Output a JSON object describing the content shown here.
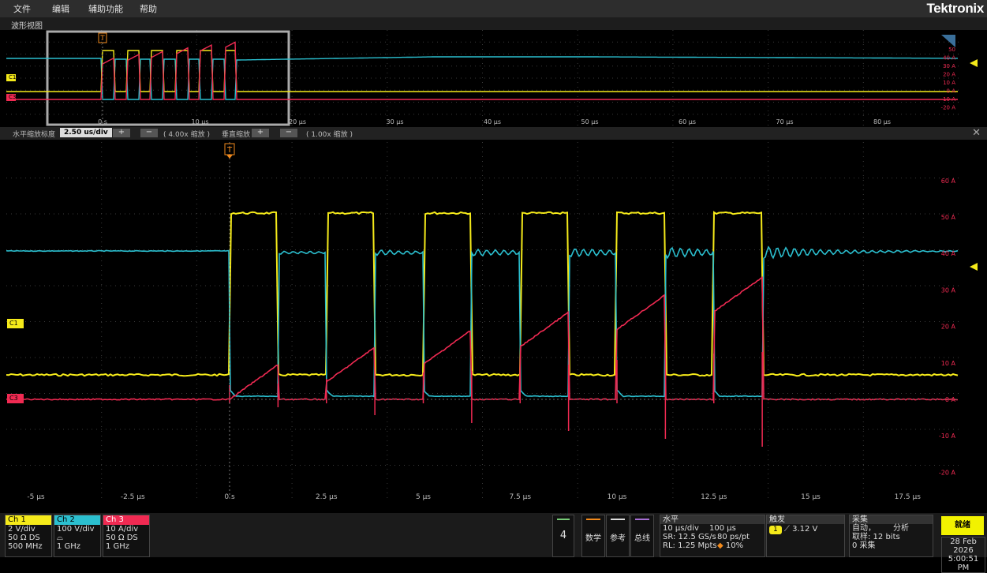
{
  "menu": {
    "items": [
      "文件",
      "编辑",
      "辅助功能",
      "帮助"
    ],
    "brand": "Tektronix"
  },
  "view_title": "波形视图",
  "colors": {
    "ch1": "#f5ea1a",
    "ch2": "#2bbfcf",
    "ch3": "#f02a52",
    "trigger": "#f28a1c",
    "grid": "#3a3a3a",
    "ready": "#f2f200"
  },
  "overview": {
    "x_labels": [
      "0 s",
      "10 µs",
      "20 µs",
      "30 µs",
      "40 µs",
      "50 µs",
      "60 µs",
      "70 µs",
      "80 µs"
    ],
    "y_labels": [
      "50",
      "40 A",
      "30 A",
      "20 A",
      "10 A",
      "0 A",
      "-10 A",
      "-20 A"
    ],
    "trigger_label": "T",
    "ch1_marker": "C1",
    "ch3_marker": "C3"
  },
  "zoom": {
    "h_label": "水平缩放标度",
    "h_value": "2.50 us/div",
    "h_factor": "( 4.00x 缩放 )",
    "v_label": "垂直缩放",
    "v_factor": "( 1.00x 缩放 )",
    "plus": "+",
    "minus": "−",
    "close": "✕"
  },
  "main": {
    "x_labels": [
      "-5 µs",
      "-2.5 µs",
      "0 s",
      "2.5 µs",
      "5 µs",
      "7.5 µs",
      "10 µs",
      "12.5 µs",
      "15 µs",
      "17.5 µs"
    ],
    "y_labels": [
      "60 A",
      "50 A",
      "40 A",
      "30 A",
      "20 A",
      "10 A",
      "0 A",
      "-10 A",
      "-20 A"
    ],
    "trigger_label": "T",
    "ch1_marker": "C1",
    "ch3_marker": "C3"
  },
  "channels": [
    {
      "name": "Ch 1",
      "lines": [
        "2 V/div",
        "50 Ω   DS",
        "500 MHz"
      ]
    },
    {
      "name": "Ch 2",
      "lines": [
        "100 V/div",
        "",
        "1 GHz"
      ]
    },
    {
      "name": "Ch 3",
      "lines": [
        "10 A/div",
        "50 Ω   DS",
        "1 GHz"
      ]
    }
  ],
  "buttons": {
    "count": "4",
    "math": "数学",
    "ref": "参考",
    "bus": "总线"
  },
  "horizontal": {
    "title": "水平",
    "scale": "10 µs/div",
    "length": "100 µs",
    "sr": "SR: 12.5 GS/s",
    "pt": "80 ps/pt",
    "rl": "RL: 1.25 Mpts",
    "pos": "10%"
  },
  "trigger": {
    "title": "触发",
    "source": "1",
    "level": "3.12 V"
  },
  "acquisition": {
    "title": "采集",
    "mode": "自动，",
    "analysis": "分析",
    "bits": "取样: 12 bits",
    "count": "0 采集"
  },
  "status": {
    "run": "就绪",
    "date": "28 Feb 2026",
    "time": "5:00:51 PM"
  }
}
